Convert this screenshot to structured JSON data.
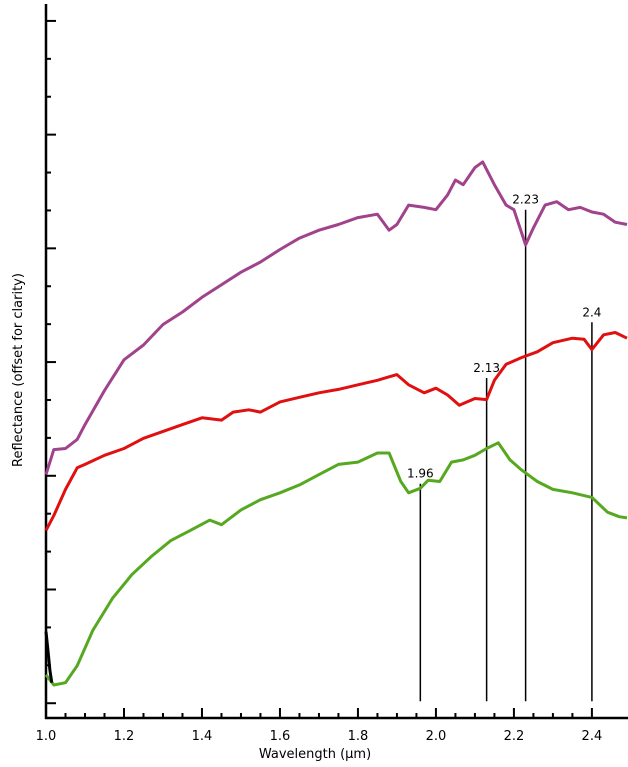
{
  "chart_data": {
    "type": "line",
    "x_label": "Wavelength (µm)",
    "y_label": "Reflectance (offset for clarity)",
    "xlim": [
      1.0,
      2.49
    ],
    "ylim": [
      -0.13,
      6.14
    ],
    "xticks": [
      {
        "value": 1.0,
        "label": "1.0"
      },
      1.2,
      1.4,
      1.6,
      1.8,
      {
        "value": 2.0,
        "label": "2.0"
      },
      2.2,
      2.4
    ],
    "yticks": [
      0,
      1,
      2,
      3,
      4,
      5,
      6
    ],
    "series": [
      {
        "color": "#a0428c",
        "x": [
          1.0,
          1.02,
          1.05,
          1.08,
          1.1,
          1.15,
          1.2,
          1.25,
          1.3,
          1.35,
          1.4,
          1.45,
          1.5,
          1.55,
          1.6,
          1.65,
          1.7,
          1.75,
          1.8,
          1.85,
          1.88,
          1.9,
          1.93,
          1.97,
          2.0,
          2.03,
          2.05,
          2.07,
          2.1,
          2.12,
          2.15,
          2.18,
          2.2,
          2.23,
          2.25,
          2.28,
          2.31,
          2.34,
          2.37,
          2.4,
          2.43,
          2.46,
          2.49
        ],
        "values": [
          2.01,
          2.23,
          2.24,
          2.32,
          2.45,
          2.75,
          3.02,
          3.15,
          3.33,
          3.44,
          3.57,
          3.68,
          3.79,
          3.88,
          3.99,
          4.09,
          4.16,
          4.21,
          4.27,
          4.3,
          4.16,
          4.21,
          4.38,
          4.36,
          4.34,
          4.47,
          4.6,
          4.56,
          4.71,
          4.76,
          4.56,
          4.38,
          4.34,
          4.03,
          4.18,
          4.38,
          4.41,
          4.34,
          4.36,
          4.32,
          4.3,
          4.23,
          4.21
        ]
      },
      {
        "color": "#e01010",
        "x": [
          1.0,
          1.02,
          1.05,
          1.08,
          1.1,
          1.15,
          1.2,
          1.25,
          1.3,
          1.35,
          1.4,
          1.45,
          1.48,
          1.52,
          1.55,
          1.6,
          1.65,
          1.7,
          1.75,
          1.8,
          1.85,
          1.9,
          1.93,
          1.97,
          2.0,
          2.03,
          2.06,
          2.1,
          2.13,
          2.15,
          2.18,
          2.22,
          2.26,
          2.3,
          2.35,
          2.38,
          2.4,
          2.43,
          2.46,
          2.49
        ],
        "values": [
          1.52,
          1.65,
          1.88,
          2.07,
          2.1,
          2.18,
          2.24,
          2.33,
          2.39,
          2.45,
          2.51,
          2.49,
          2.56,
          2.58,
          2.56,
          2.65,
          2.69,
          2.73,
          2.76,
          2.8,
          2.84,
          2.89,
          2.8,
          2.73,
          2.77,
          2.71,
          2.62,
          2.68,
          2.67,
          2.84,
          2.98,
          3.04,
          3.09,
          3.17,
          3.21,
          3.2,
          3.11,
          3.24,
          3.26,
          3.21
        ]
      },
      {
        "color": "#55a820",
        "x": [
          1.0,
          1.02,
          1.05,
          1.08,
          1.12,
          1.17,
          1.22,
          1.27,
          1.32,
          1.37,
          1.42,
          1.45,
          1.5,
          1.55,
          1.6,
          1.65,
          1.7,
          1.75,
          1.8,
          1.85,
          1.88,
          1.91,
          1.93,
          1.96,
          1.98,
          2.01,
          2.04,
          2.07,
          2.1,
          2.13,
          2.16,
          2.19,
          2.22,
          2.26,
          2.3,
          2.35,
          2.4,
          2.44,
          2.47,
          2.49
        ],
        "values": [
          0.25,
          0.16,
          0.18,
          0.33,
          0.64,
          0.92,
          1.13,
          1.29,
          1.43,
          1.52,
          1.61,
          1.57,
          1.7,
          1.79,
          1.85,
          1.92,
          2.01,
          2.1,
          2.12,
          2.2,
          2.2,
          1.95,
          1.85,
          1.89,
          1.96,
          1.95,
          2.12,
          2.14,
          2.18,
          2.24,
          2.29,
          2.14,
          2.05,
          1.95,
          1.88,
          1.85,
          1.81,
          1.68,
          1.64,
          1.63
        ]
      },
      {
        "color": "#000000",
        "x": [
          1.0,
          1.005,
          1.01,
          1.015
        ],
        "values": [
          0.63,
          0.47,
          0.29,
          0.18
        ]
      }
    ],
    "annotations": [
      {
        "text": "1.96",
        "x": 1.96,
        "y": 1.93
      },
      {
        "text": "2.13",
        "x": 2.13,
        "y": 2.86
      },
      {
        "text": "2.23",
        "x": 2.23,
        "y": 4.34
      },
      {
        "text": "2.4",
        "x": 2.4,
        "y": 3.35
      }
    ]
  }
}
